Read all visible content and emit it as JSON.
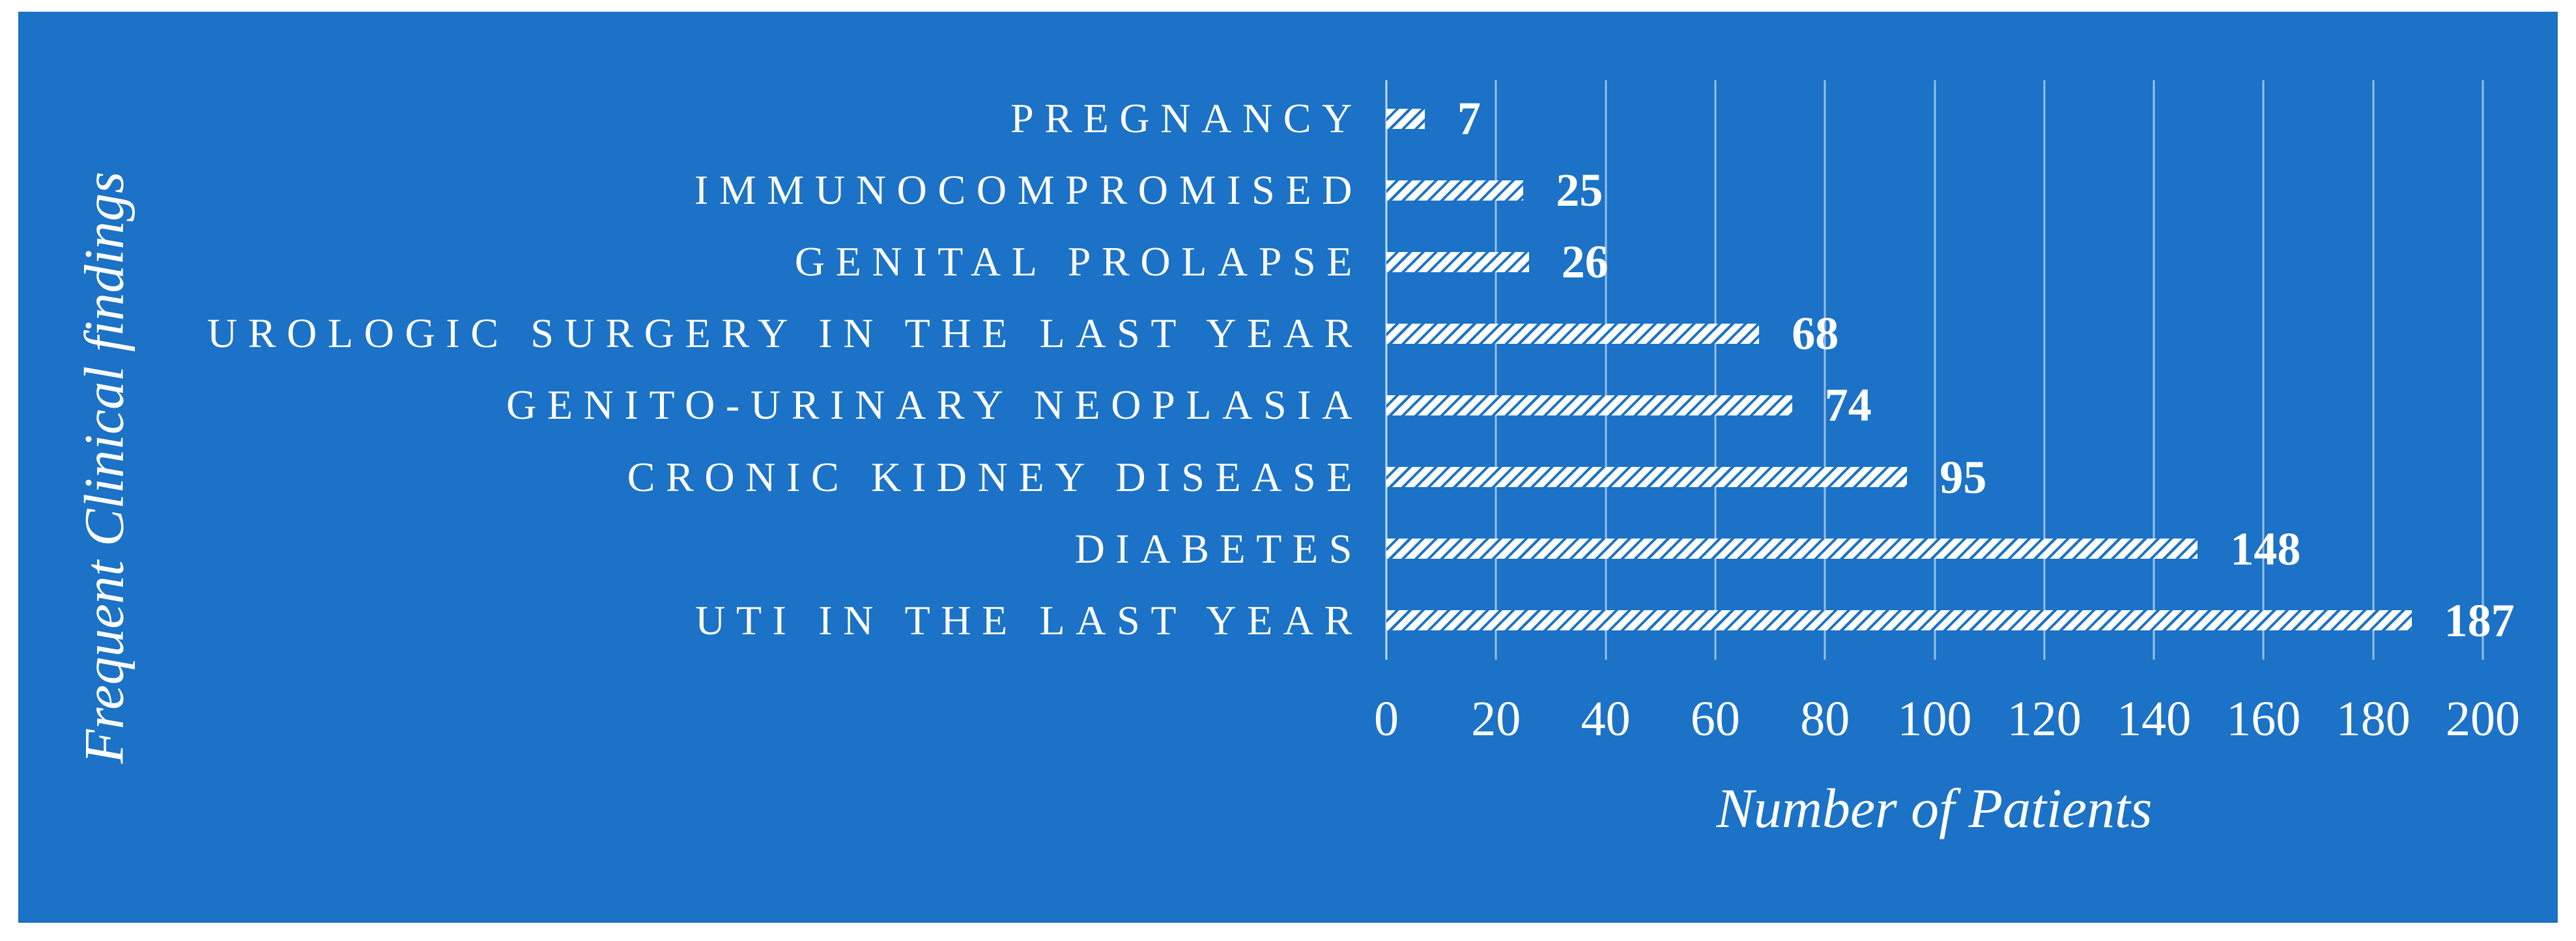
{
  "figure": {
    "background_color": "#FFFFFF",
    "panel_color": "#1B72C6",
    "text_color": "#FFFFFF",
    "gridline_color": "rgba(255,255,255,0.55)",
    "bar_fill": "white-diagonal-hatch"
  },
  "chart_data": {
    "type": "bar",
    "orientation": "horizontal",
    "title": "",
    "xlabel": "Number of Patients",
    "ylabel": "Frequent Clinical findings",
    "categories": [
      "PREGNANCY",
      "IMMUNOCOMPROMISED",
      "GENITAL PROLAPSE",
      "UROLOGIC SURGERY IN THE LAST YEAR",
      "GENITO-URINARY NEOPLASIA",
      "CRONIC KIDNEY DISEASE",
      "DIABETES",
      "UTI IN THE LAST YEAR"
    ],
    "values": [
      7,
      25,
      26,
      68,
      74,
      95,
      148,
      187
    ],
    "data_labels": true,
    "xlim": [
      0,
      200
    ],
    "xticks": [
      0,
      20,
      40,
      60,
      80,
      100,
      120,
      140,
      160,
      180,
      200
    ],
    "grid": "vertical",
    "legend_position": "none"
  }
}
